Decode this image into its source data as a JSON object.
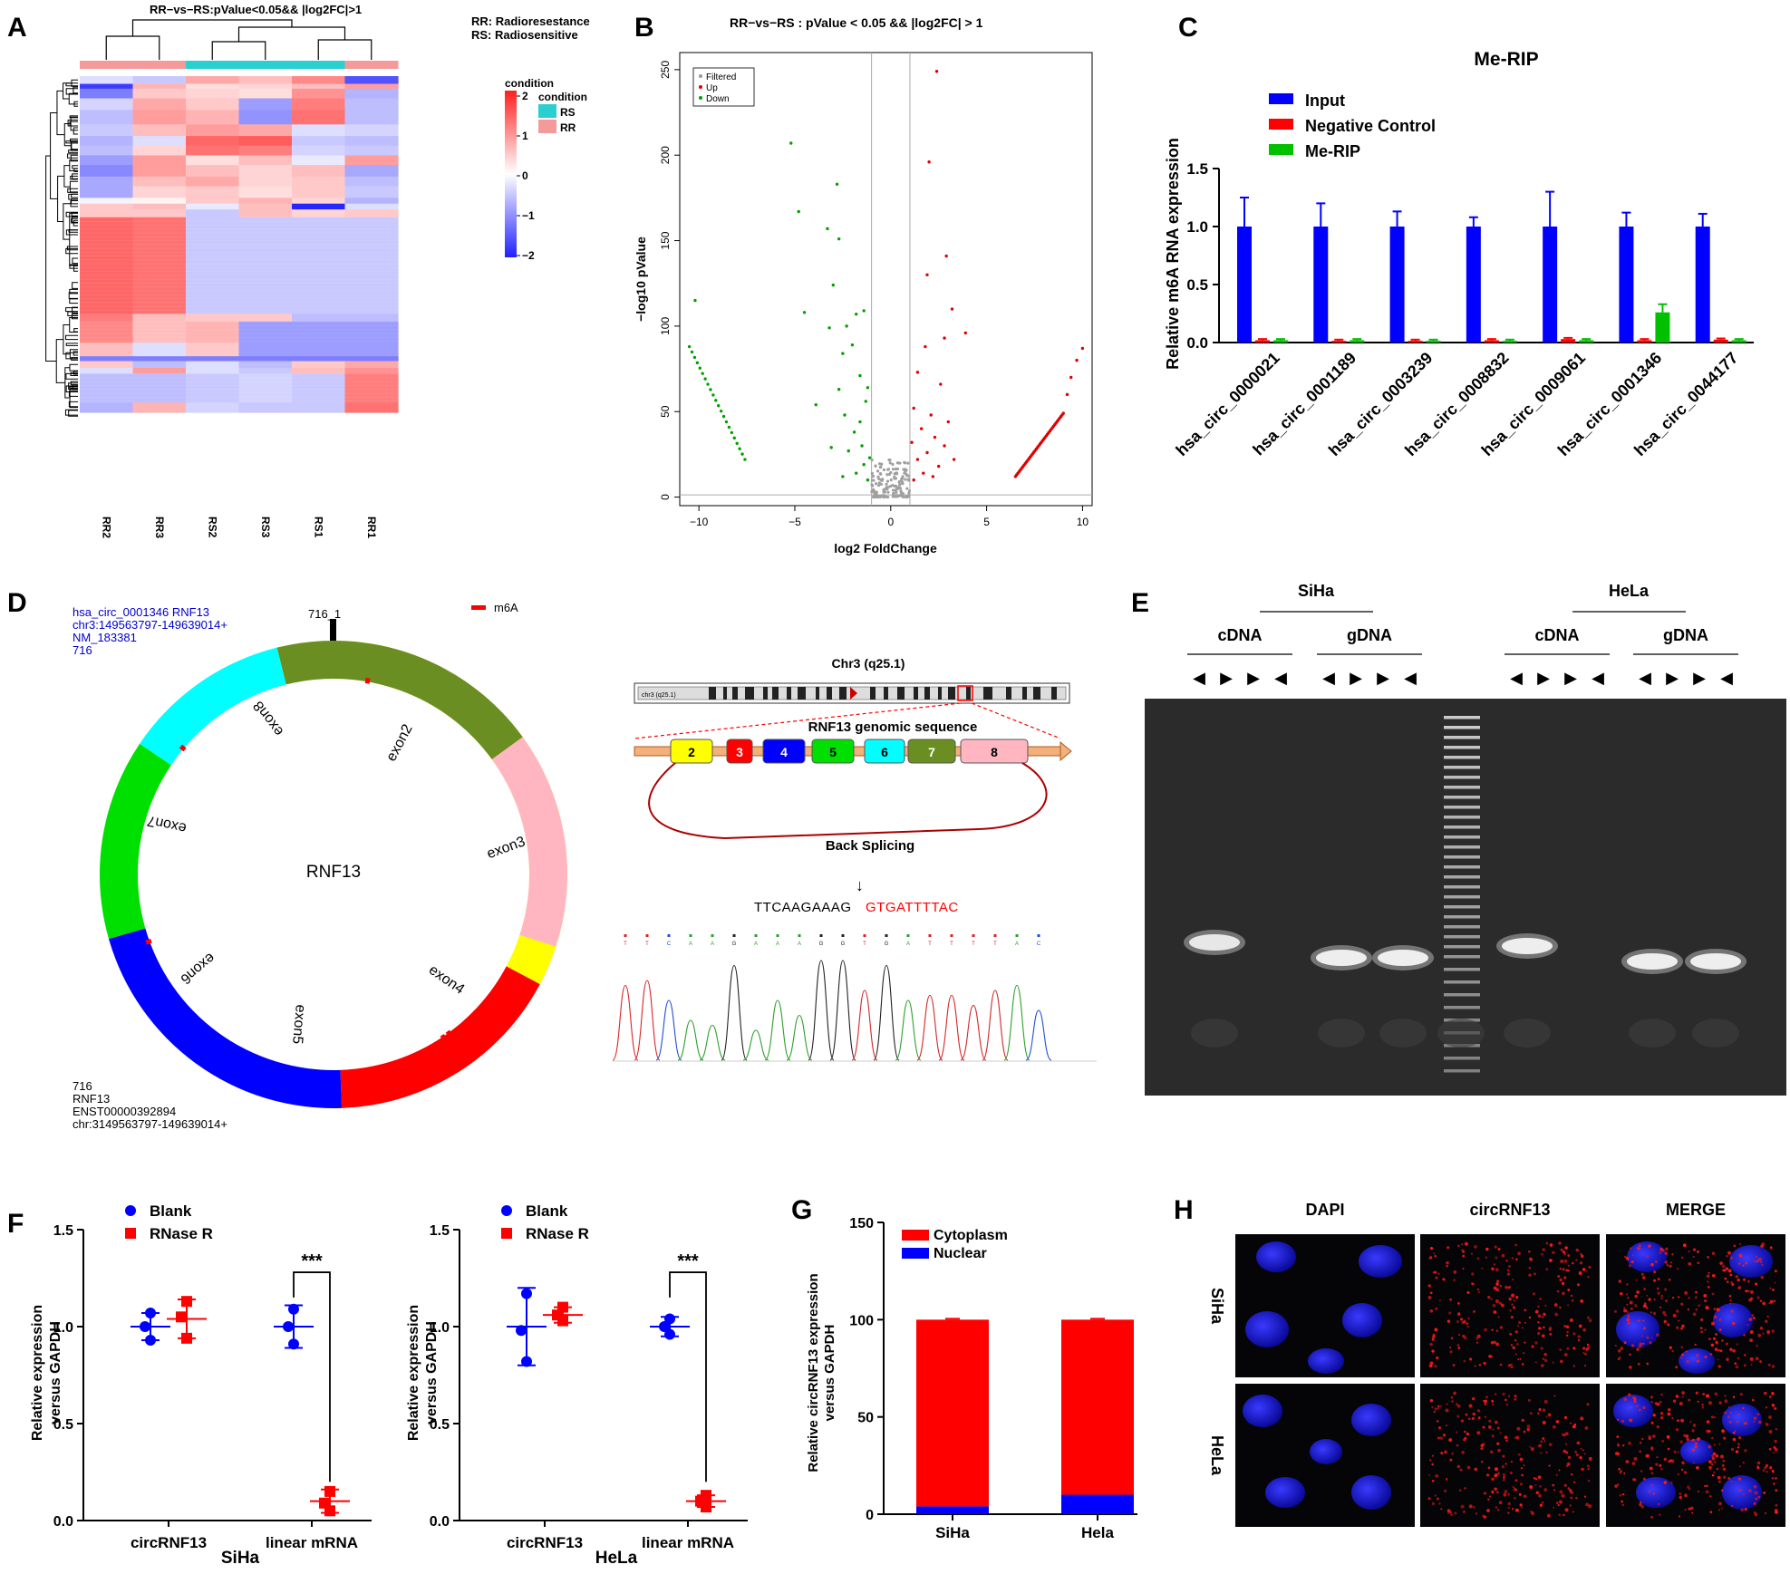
{
  "figure": {
    "panel_letters": [
      "A",
      "B",
      "C",
      "D",
      "E",
      "F",
      "G",
      "H"
    ]
  },
  "colors": {
    "red": "#ff0000",
    "blue": "#0000ff",
    "green": "#00c000",
    "heat_high": "#ff3333",
    "heat_low": "#3333ff",
    "rs_teal": "#2bcfcf",
    "rr_pink": "#f59a9a"
  },
  "panelA": {
    "title": "RR−vs−RS:pValue<0.05&& |log2FC|>1",
    "note_rr": "RR: Radioresestance",
    "note_rs": "RS: Radiosensitive",
    "legend_title_1": "condition",
    "legend_title_2": "condition",
    "legend_rs": "RS",
    "legend_rr": "RR",
    "colorbar_ticks": [
      "2",
      "1",
      "0",
      "−1",
      "−2"
    ],
    "columns": [
      "RR2",
      "RR3",
      "RS2",
      "RS3",
      "RS1",
      "RR1"
    ],
    "column_condition": [
      "RR",
      "RR",
      "RS",
      "RS",
      "RS",
      "RR"
    ]
  },
  "chart_data": [
    {
      "panel": "B",
      "type": "scatter",
      "title": "RR−vs−RS : pValue < 0.05 && |log2FC| > 1",
      "xlabel": "log2 FoldChange",
      "ylabel": "−log10 pValue",
      "xlim": [
        -11,
        10.5
      ],
      "ylim": [
        -5,
        260
      ],
      "xticks": [
        "−10",
        "−5",
        "0",
        "5",
        "10"
      ],
      "yticks": [
        "0",
        "50",
        "100",
        "150",
        "200",
        "250"
      ],
      "legend": [
        "Filtered",
        "Up",
        "Down"
      ],
      "threshold_lines": {
        "x": [
          -1,
          1
        ],
        "y": 1.3
      },
      "down_points": [
        [
          -5.2,
          207
        ],
        [
          -2.8,
          183
        ],
        [
          -4.8,
          167
        ],
        [
          -3.3,
          157
        ],
        [
          -2.7,
          151
        ],
        [
          -10.2,
          115
        ],
        [
          -2.3,
          100
        ],
        [
          -1.8,
          107
        ],
        [
          -4.5,
          108
        ],
        [
          -3,
          124
        ],
        [
          -1.4,
          109
        ],
        [
          -2,
          89
        ],
        [
          -3.2,
          99
        ],
        [
          -2.5,
          84
        ],
        [
          -1.6,
          71
        ],
        [
          -1.2,
          64
        ],
        [
          -2.7,
          63
        ],
        [
          -3.9,
          54
        ],
        [
          -2.4,
          48
        ],
        [
          -1.9,
          38
        ],
        [
          -1.5,
          30
        ],
        [
          -1.1,
          23
        ],
        [
          -3.1,
          29
        ],
        [
          -2.2,
          27
        ],
        [
          -1.4,
          19
        ],
        [
          -1.8,
          14
        ],
        [
          -1.2,
          10
        ],
        [
          -2.5,
          12
        ],
        [
          -1.6,
          44
        ],
        [
          -1.3,
          56
        ]
      ],
      "down_arc": {
        "x_from": -10.5,
        "x_to": -7.6,
        "y_from": 88,
        "y_to": 22
      },
      "up_points": [
        [
          2.4,
          249
        ],
        [
          2,
          196
        ],
        [
          2.9,
          141
        ],
        [
          1.9,
          130
        ],
        [
          3.2,
          110
        ],
        [
          3.9,
          96
        ],
        [
          2.8,
          93
        ],
        [
          1.8,
          88
        ],
        [
          1.4,
          73
        ],
        [
          2.6,
          66
        ],
        [
          1.2,
          52
        ],
        [
          2.1,
          48
        ],
        [
          3,
          44
        ],
        [
          1.6,
          40
        ],
        [
          2.3,
          35
        ],
        [
          2.8,
          30
        ],
        [
          1.9,
          26
        ],
        [
          1.4,
          22
        ],
        [
          2.5,
          18
        ],
        [
          1.7,
          14
        ],
        [
          1.2,
          10
        ],
        [
          3.3,
          22
        ],
        [
          2.2,
          12
        ],
        [
          1.1,
          32
        ]
      ],
      "up_arc": {
        "x_from": 6.5,
        "x_to": 9.0,
        "y_from": 12,
        "y_to": 49
      },
      "up_tail": [
        [
          9.2,
          60
        ],
        [
          9.4,
          70
        ],
        [
          9.7,
          80
        ],
        [
          10,
          87
        ]
      ],
      "filtered_cluster": {
        "x_from": -1,
        "x_to": 1,
        "y_max": 22
      }
    },
    {
      "panel": "C",
      "type": "bar",
      "title": "Me-RIP",
      "ylabel": "Relative m6A RNA expression",
      "ylim": [
        0,
        1.5
      ],
      "yticks": [
        "0.0",
        "0.5",
        "1.0",
        "1.5"
      ],
      "categories": [
        "hsa_circ_0000021",
        "hsa_circ_0001189",
        "hsa_circ_0003239",
        "hsa_circ_0008832",
        "hsa_circ_0009061",
        "hsa_circ_0001346",
        "hsa_circ_0044177"
      ],
      "series": [
        {
          "name": "Input",
          "color": "#0000ff",
          "values": [
            1,
            1,
            1,
            1,
            1,
            1,
            1
          ],
          "errors": [
            0.25,
            0.2,
            0.13,
            0.08,
            0.3,
            0.12,
            0.11
          ]
        },
        {
          "name": "Negative Control",
          "color": "#ff0000",
          "values": [
            0.02,
            0.015,
            0.015,
            0.02,
            0.03,
            0.02,
            0.025
          ],
          "errors": [
            0.01,
            0.01,
            0.01,
            0.01,
            0.01,
            0.01,
            0.01
          ]
        },
        {
          "name": "Me-RIP",
          "color": "#00c000",
          "values": [
            0.02,
            0.02,
            0.015,
            0.015,
            0.02,
            0.26,
            0.02
          ],
          "errors": [
            0.01,
            0.01,
            0.01,
            0.01,
            0.01,
            0.07,
            0.01
          ]
        }
      ]
    },
    {
      "panel": "F",
      "type": "scatter",
      "subtitle": "SiHa",
      "ylabel": "Relative expression versus GAPDH",
      "ylim": [
        0,
        1.5
      ],
      "yticks": [
        "0.0",
        "0.5",
        "1.0",
        "1.5"
      ],
      "categories": [
        "circRNF13",
        "linear mRNA"
      ],
      "legend": [
        "Blank",
        "RNase R"
      ],
      "series": [
        {
          "name": "Blank",
          "color": "#0000ff",
          "marker": "circle",
          "groups": [
            {
              "points": [
                1.07,
                1.0,
                0.93
              ],
              "mean": 1.0,
              "sd": 0.07
            },
            {
              "points": [
                1.09,
                1.0,
                0.91
              ],
              "mean": 1.0,
              "sd": 0.11
            }
          ]
        },
        {
          "name": "RNase R",
          "color": "#ff0000",
          "marker": "square",
          "groups": [
            {
              "points": [
                1.13,
                1.05,
                0.94
              ],
              "mean": 1.04,
              "sd": 0.1
            },
            {
              "points": [
                0.15,
                0.09,
                0.05
              ],
              "mean": 0.1,
              "sd": 0.06
            }
          ]
        }
      ],
      "significance": "***"
    },
    {
      "panel": "F2",
      "type": "scatter",
      "subtitle": "HeLa",
      "ylabel": "Relative expression versus GAPDH",
      "ylim": [
        0,
        1.5
      ],
      "yticks": [
        "0.0",
        "0.5",
        "1.0",
        "1.5"
      ],
      "categories": [
        "circRNF13",
        "linear mRNA"
      ],
      "legend": [
        "Blank",
        "RNase R"
      ],
      "series": [
        {
          "name": "Blank",
          "color": "#0000ff",
          "marker": "circle",
          "groups": [
            {
              "points": [
                1.17,
                0.98,
                0.82
              ],
              "mean": 1.0,
              "sd": 0.2
            },
            {
              "points": [
                1.04,
                1.0,
                0.96
              ],
              "mean": 1.0,
              "sd": 0.05
            }
          ]
        },
        {
          "name": "RNase R",
          "color": "#ff0000",
          "marker": "square",
          "groups": [
            {
              "points": [
                1.1,
                1.06,
                1.03
              ],
              "mean": 1.06,
              "sd": 0.04
            },
            {
              "points": [
                0.13,
                0.1,
                0.07
              ],
              "mean": 0.1,
              "sd": 0.03
            }
          ]
        }
      ],
      "significance": "***"
    },
    {
      "panel": "G",
      "type": "bar",
      "stacked": true,
      "ylabel": "Relative circRNF13 expression versus GAPDH",
      "ylim": [
        0,
        150
      ],
      "yticks": [
        "0",
        "50",
        "100",
        "150"
      ],
      "categories": [
        "SiHa",
        "Hela"
      ],
      "series": [
        {
          "name": "Cytoplasm",
          "color": "#ff0000",
          "values": [
            96,
            90
          ]
        },
        {
          "name": "Nuclear",
          "color": "#0000ff",
          "values": [
            4,
            10
          ]
        }
      ]
    }
  ],
  "panelD": {
    "info_top": [
      "hsa_circ_0001346 RNF13",
      "chr3:149563797-149639014+",
      "NM_183381",
      "716"
    ],
    "info_bottom": [
      "716",
      "RNF13",
      "ENST00000392894",
      "chr:3149563797-149639014+"
    ],
    "marker_label": "716_1",
    "legend_m6a": "m6A",
    "center_label": "RNF13",
    "exons": [
      {
        "label": "exon2",
        "color": "#ffff00",
        "deg": 118
      },
      {
        "label": "exon3",
        "color": "#ff0000",
        "deg": 60
      },
      {
        "label": "exon4",
        "color": "#0000ff",
        "deg": 76
      },
      {
        "label": "exon5",
        "color": "#00e000",
        "deg": 50
      },
      {
        "label": "exon6",
        "color": "#00ffff",
        "deg": 42
      },
      {
        "label": "exon7",
        "color": "#6b8e23",
        "deg": 68
      },
      {
        "label": "exon8",
        "color": "#ffb6c1",
        "deg": 54
      }
    ],
    "chr_title": "Chr3 (q25.1)",
    "chr_band_text": "chr3 (q25.1)",
    "genomic_title": "RNF13 genomic sequence",
    "exon_boxes": [
      {
        "label": "2",
        "color": "#ffff00"
      },
      {
        "label": "3",
        "color": "#ff0000"
      },
      {
        "label": "4",
        "color": "#0000ff"
      },
      {
        "label": "5",
        "color": "#00e000"
      },
      {
        "label": "6",
        "color": "#00ffff"
      },
      {
        "label": "7",
        "color": "#6b8e23"
      },
      {
        "label": "8",
        "color": "#ffb6c1"
      }
    ],
    "back_splicing": "Back Splicing",
    "seq_left": "TTCAAGAAAG",
    "seq_right": "GTGATTTTAC",
    "trace_bases": [
      "T",
      "T",
      "C",
      "A",
      "A",
      "G",
      "A",
      "A",
      "A",
      "G",
      "G",
      "T",
      "G",
      "A",
      "T",
      "T",
      "T",
      "T",
      "A",
      "C"
    ]
  },
  "panelE": {
    "cell_lines": [
      "SiHa",
      "HeLa"
    ],
    "templates": [
      "cDNA",
      "gDNA",
      "cDNA",
      "gDNA"
    ],
    "arrow_pairs": [
      [
        "◀",
        "▶",
        "▶",
        "◀"
      ],
      [
        "◀",
        "▶",
        "▶",
        "◀"
      ],
      [
        "◀",
        "▶",
        "▶",
        "◀"
      ],
      [
        "◀",
        "▶",
        "▶",
        "◀"
      ]
    ]
  },
  "panelH": {
    "columns": [
      "DAPI",
      "circRNF13",
      "MERGE"
    ],
    "rows": [
      "SiHa",
      "HeLa"
    ]
  }
}
